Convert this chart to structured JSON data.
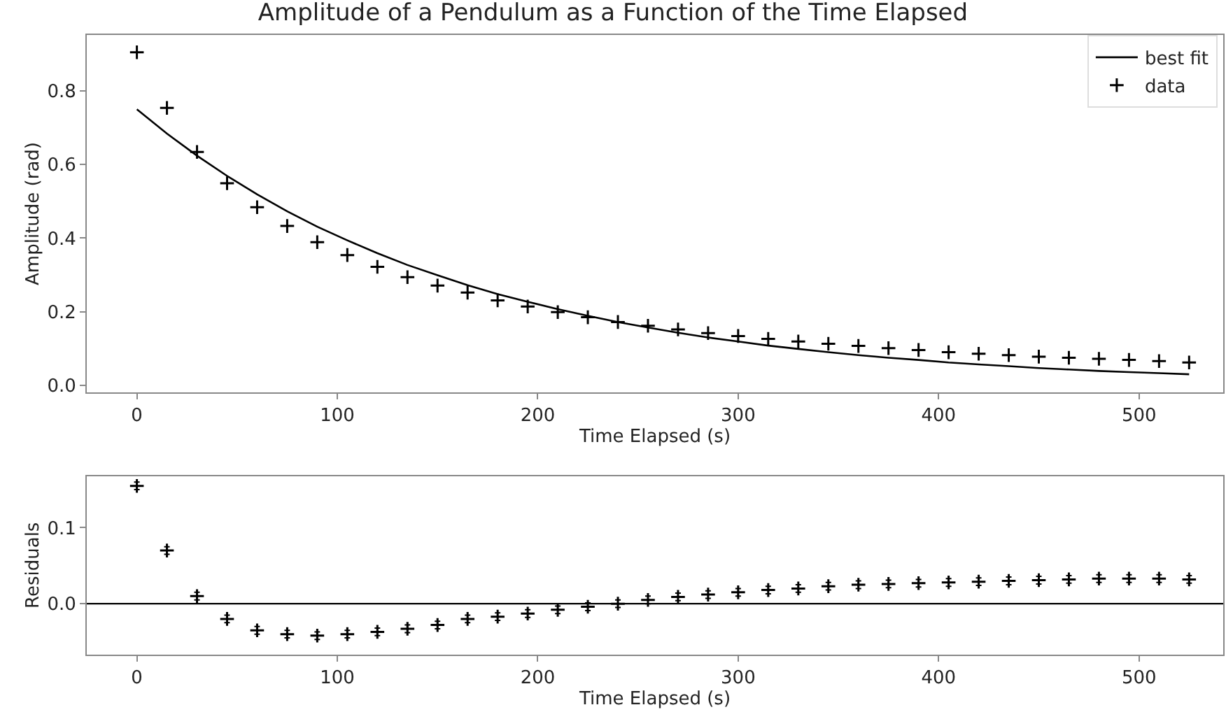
{
  "chart_data": [
    {
      "type": "scatter",
      "title": "Amplitude of a Pendulum as a Function of the Time Elapsed",
      "xlabel": "Time Elapsed (s)",
      "ylabel": "Amplitude (rad)",
      "x": [
        0,
        15,
        30,
        45,
        60,
        75,
        90,
        105,
        120,
        135,
        150,
        165,
        180,
        195,
        210,
        225,
        240,
        255,
        270,
        285,
        300,
        315,
        330,
        345,
        360,
        375,
        390,
        405,
        420,
        435,
        450,
        465,
        480,
        495,
        510,
        525
      ],
      "series": [
        {
          "name": "best fit",
          "type": "line",
          "color": "#000000",
          "line_style": "solid",
          "values": [
            0.75,
            0.684,
            0.624,
            0.569,
            0.519,
            0.473,
            0.431,
            0.394,
            0.359,
            0.327,
            0.299,
            0.272,
            0.248,
            0.227,
            0.207,
            0.189,
            0.172,
            0.157,
            0.143,
            0.13,
            0.119,
            0.108,
            0.099,
            0.09,
            0.082,
            0.075,
            0.069,
            0.062,
            0.057,
            0.052,
            0.047,
            0.043,
            0.039,
            0.036,
            0.033,
            0.03
          ]
        },
        {
          "name": "data",
          "type": "scatter",
          "color": "#000000",
          "marker": "cross",
          "values": [
            0.905,
            0.754,
            0.634,
            0.549,
            0.484,
            0.433,
            0.389,
            0.354,
            0.322,
            0.294,
            0.271,
            0.252,
            0.231,
            0.214,
            0.199,
            0.185,
            0.172,
            0.162,
            0.152,
            0.142,
            0.134,
            0.126,
            0.119,
            0.113,
            0.107,
            0.101,
            0.096,
            0.09,
            0.086,
            0.082,
            0.078,
            0.075,
            0.072,
            0.069,
            0.066,
            0.062
          ]
        }
      ],
      "xlim": [
        -25,
        542
      ],
      "xticks": [
        0,
        100,
        200,
        300,
        400,
        500
      ],
      "ylim": [
        -0.019,
        0.952
      ],
      "yticks": [
        {
          "value": 0,
          "label": "0.0"
        },
        0.2,
        0.4,
        0.6,
        0.8
      ],
      "legend": "top right"
    },
    {
      "type": "scatter",
      "xlabel": "Time Elapsed (s)",
      "ylabel": "Residuals",
      "x": [
        0,
        15,
        30,
        45,
        60,
        75,
        90,
        105,
        120,
        135,
        150,
        165,
        180,
        195,
        210,
        225,
        240,
        255,
        270,
        285,
        300,
        315,
        330,
        345,
        360,
        375,
        390,
        405,
        420,
        435,
        450,
        465,
        480,
        495,
        510,
        525
      ],
      "series": [
        {
          "color": "#000000",
          "marker": "cross",
          "values": [
            0.155,
            0.07,
            0.01,
            -0.02,
            -0.035,
            -0.04,
            -0.042,
            -0.04,
            -0.037,
            -0.033,
            -0.028,
            -0.02,
            -0.017,
            -0.013,
            -0.008,
            -0.004,
            0.0,
            0.005,
            0.009,
            0.012,
            0.015,
            0.018,
            0.02,
            0.023,
            0.025,
            0.026,
            0.027,
            0.028,
            0.029,
            0.03,
            0.031,
            0.032,
            0.033,
            0.033,
            0.033,
            0.032
          ],
          "errors": [
            0.005,
            0.005,
            0.005,
            0.005,
            0.005,
            0.005,
            0.005,
            0.005,
            0.005,
            0.005,
            0.005,
            0.005,
            0.005,
            0.005,
            0.005,
            0.005,
            0.005,
            0.005,
            0.005,
            0.005,
            0.005,
            0.005,
            0.005,
            0.005,
            0.005,
            0.005,
            0.005,
            0.005,
            0.005,
            0.005,
            0.005,
            0.005,
            0.005,
            0.005,
            0.005,
            0.005
          ]
        }
      ],
      "ref_lines": [
        {
          "axis": "y",
          "value": 0,
          "color": "#000000",
          "line_style": "solid"
        }
      ],
      "xlim": [
        -25,
        542
      ],
      "xticks": [
        0,
        100,
        200,
        300,
        400,
        500
      ],
      "ylim": [
        -0.067,
        0.168
      ],
      "yticks": [
        {
          "value": 0,
          "label": "0.0"
        },
        0.1
      ],
      "legend": false
    }
  ]
}
